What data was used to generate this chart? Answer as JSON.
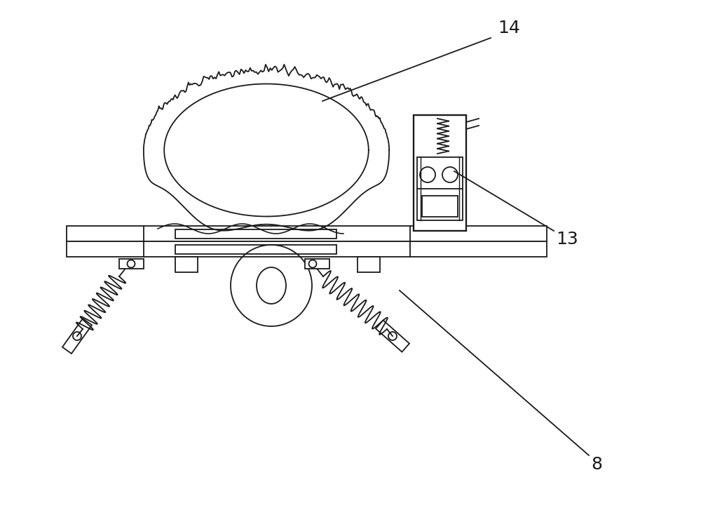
{
  "bg_color": "#ffffff",
  "line_color": "#1a1a1a",
  "lw": 1.3,
  "fig_width": 10.0,
  "fig_height": 7.44,
  "label_14": "14",
  "label_13": "13",
  "label_8": "8",
  "label_fontsize": 18
}
